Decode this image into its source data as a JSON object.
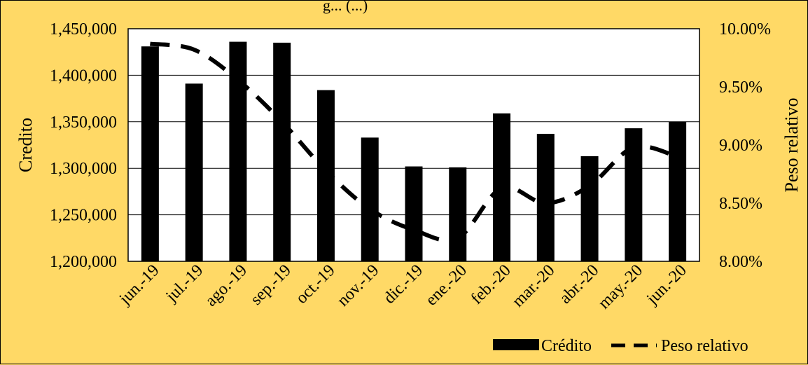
{
  "chart_data": {
    "type": "bar",
    "title_fragment": "g... (...)",
    "categories": [
      "jun.-19",
      "jul.-19",
      "ago.-19",
      "sep.-19",
      "oct.-19",
      "nov.-19",
      "dic.-19",
      "ene.-20",
      "feb.-20",
      "mar.-20",
      "abr.-20",
      "may.-20",
      "jun.-20"
    ],
    "series": [
      {
        "name": "Crédito",
        "type": "bar",
        "axis": "left",
        "color": "#000000",
        "values": [
          1431000,
          1391000,
          1436000,
          1435000,
          1384000,
          1333000,
          1302000,
          1301000,
          1359000,
          1337000,
          1313000,
          1343000,
          1350000
        ]
      },
      {
        "name": "Peso relativo",
        "type": "line",
        "style": "dashed",
        "axis": "right",
        "color": "#000000",
        "values": [
          9.87,
          9.82,
          9.56,
          9.2,
          8.78,
          8.45,
          8.27,
          8.2,
          8.63,
          8.5,
          8.65,
          8.98,
          8.9
        ]
      }
    ],
    "ylabel": "Credito",
    "y2label": "Peso relativo",
    "ylim": [
      1200000,
      1450000
    ],
    "y2lim": [
      8.0,
      10.0
    ],
    "yticks": [
      "1,200,000",
      "1,250,000",
      "1,300,000",
      "1,350,000",
      "1,400,000",
      "1,450,000"
    ],
    "y2ticks": [
      "8.00%",
      "8.50%",
      "9.00%",
      "9.50%",
      "10.00%"
    ],
    "grid": true,
    "legend_position": "bottom-right"
  }
}
